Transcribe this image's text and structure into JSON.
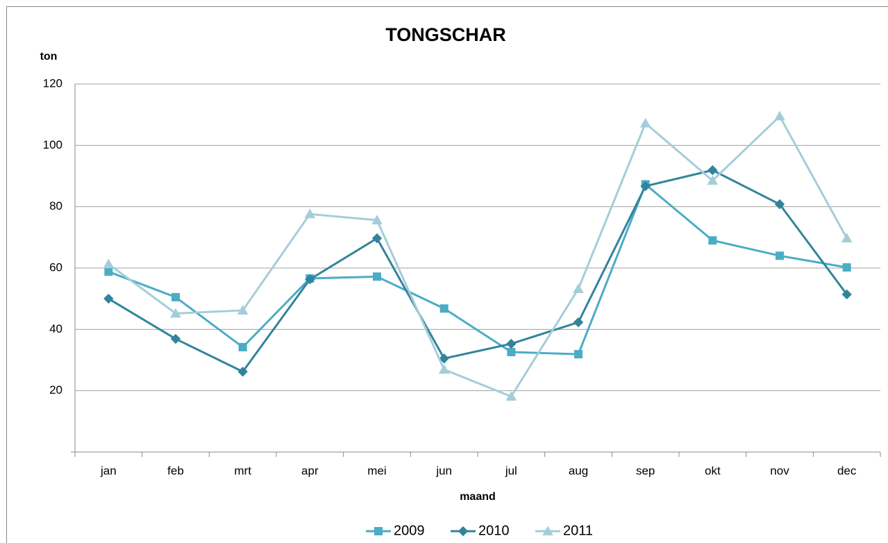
{
  "chart_data": {
    "type": "line",
    "title": "TONGSCHAR",
    "y_label": "ton",
    "x_label": "maand",
    "categories": [
      "jan",
      "feb",
      "mrt",
      "apr",
      "mei",
      "jun",
      "jul",
      "aug",
      "sep",
      "okt",
      "nov",
      "dec"
    ],
    "series": [
      {
        "name": "2009",
        "color": "#4bacc6",
        "marker": "square",
        "values": [
          58.8,
          50.5,
          34.2,
          56.6,
          57.2,
          46.8,
          32.6,
          31.9,
          87.3,
          69,
          64,
          60.2
        ]
      },
      {
        "name": "2010",
        "color": "#31849b",
        "marker": "diamond",
        "values": [
          50,
          36.9,
          26.2,
          56.3,
          69.7,
          30.5,
          35.3,
          42.3,
          86.7,
          91.9,
          80.8,
          51.4
        ]
      },
      {
        "name": "2011",
        "color": "#a5cdd9",
        "marker": "triangle",
        "values": [
          61.3,
          45.2,
          46.2,
          77.6,
          75.6,
          26.9,
          18.1,
          53.2,
          107.2,
          88.5,
          109.5,
          69.7
        ]
      }
    ],
    "ylim": [
      0,
      120
    ],
    "yticks": [
      20,
      40,
      60,
      80,
      100,
      120
    ],
    "grid": true,
    "legend": "bottom"
  }
}
